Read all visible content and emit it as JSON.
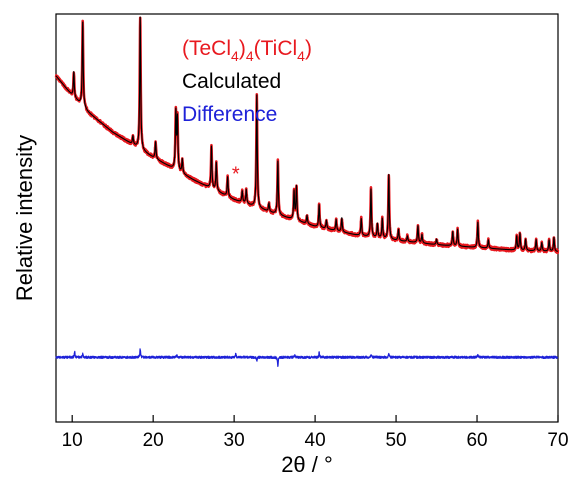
{
  "chart_data": {
    "type": "line",
    "xlabel": "2θ / °",
    "ylabel": "Relative intensity",
    "xlim": [
      8,
      70
    ],
    "x_ticks": [
      10,
      20,
      30,
      40,
      50,
      60,
      70
    ],
    "y_ticks": [],
    "grid": false,
    "legend_position": "top-right",
    "legend": [
      {
        "name": "(TeCl4)4(TiCl4)",
        "color": "#e8191f"
      },
      {
        "name": "Calculated",
        "color": "#000000"
      },
      {
        "name": "Difference",
        "color": "#1e22d8"
      }
    ],
    "annotation": {
      "text": "*",
      "x": 30.2,
      "color": "#e8191f"
    },
    "baseline": [
      [
        8,
        0.78
      ],
      [
        10,
        0.71
      ],
      [
        12,
        0.65
      ],
      [
        15,
        0.58
      ],
      [
        20,
        0.49
      ],
      [
        25,
        0.41
      ],
      [
        30,
        0.34
      ],
      [
        35,
        0.29
      ],
      [
        40,
        0.245
      ],
      [
        45,
        0.215
      ],
      [
        50,
        0.195
      ],
      [
        55,
        0.18
      ],
      [
        60,
        0.17
      ],
      [
        65,
        0.16
      ],
      [
        70,
        0.155
      ]
    ],
    "peaks": [
      [
        10.2,
        0.09
      ],
      [
        11.3,
        0.3
      ],
      [
        17.5,
        0.03
      ],
      [
        18.4,
        0.47
      ],
      [
        20.3,
        0.06
      ],
      [
        22.8,
        0.2
      ],
      [
        23.0,
        0.18
      ],
      [
        23.6,
        0.05
      ],
      [
        27.2,
        0.15
      ],
      [
        27.8,
        0.1
      ],
      [
        29.2,
        0.07
      ],
      [
        31.0,
        0.04
      ],
      [
        31.5,
        0.05
      ],
      [
        32.8,
        0.4
      ],
      [
        34.3,
        0.03
      ],
      [
        35.4,
        0.19
      ],
      [
        37.4,
        0.1
      ],
      [
        37.7,
        0.12
      ],
      [
        39.0,
        0.03
      ],
      [
        40.5,
        0.08
      ],
      [
        41.4,
        0.03
      ],
      [
        42.6,
        0.04
      ],
      [
        43.3,
        0.05
      ],
      [
        45.7,
        0.06
      ],
      [
        46.9,
        0.17
      ],
      [
        47.7,
        0.05
      ],
      [
        48.3,
        0.07
      ],
      [
        49.1,
        0.23
      ],
      [
        50.3,
        0.04
      ],
      [
        51.4,
        0.02
      ],
      [
        52.7,
        0.06
      ],
      [
        53.2,
        0.03
      ],
      [
        55.0,
        0.02
      ],
      [
        57.0,
        0.05
      ],
      [
        57.6,
        0.06
      ],
      [
        60.1,
        0.09
      ],
      [
        61.4,
        0.03
      ],
      [
        64.9,
        0.05
      ],
      [
        65.3,
        0.06
      ],
      [
        66.0,
        0.04
      ],
      [
        67.3,
        0.04
      ],
      [
        68.0,
        0.03
      ],
      [
        68.9,
        0.04
      ],
      [
        69.5,
        0.05
      ]
    ],
    "difference_spikes": [
      [
        10.3,
        0.02
      ],
      [
        11.3,
        0.014
      ],
      [
        18.4,
        0.03
      ],
      [
        22.9,
        0.01
      ],
      [
        30.2,
        0.012
      ],
      [
        32.8,
        -0.012
      ],
      [
        35.4,
        -0.03
      ],
      [
        37.5,
        0.01
      ],
      [
        40.5,
        0.018
      ],
      [
        46.9,
        0.01
      ],
      [
        49.1,
        0.014
      ],
      [
        60.1,
        0.01
      ]
    ],
    "difference_offset": -0.22
  }
}
